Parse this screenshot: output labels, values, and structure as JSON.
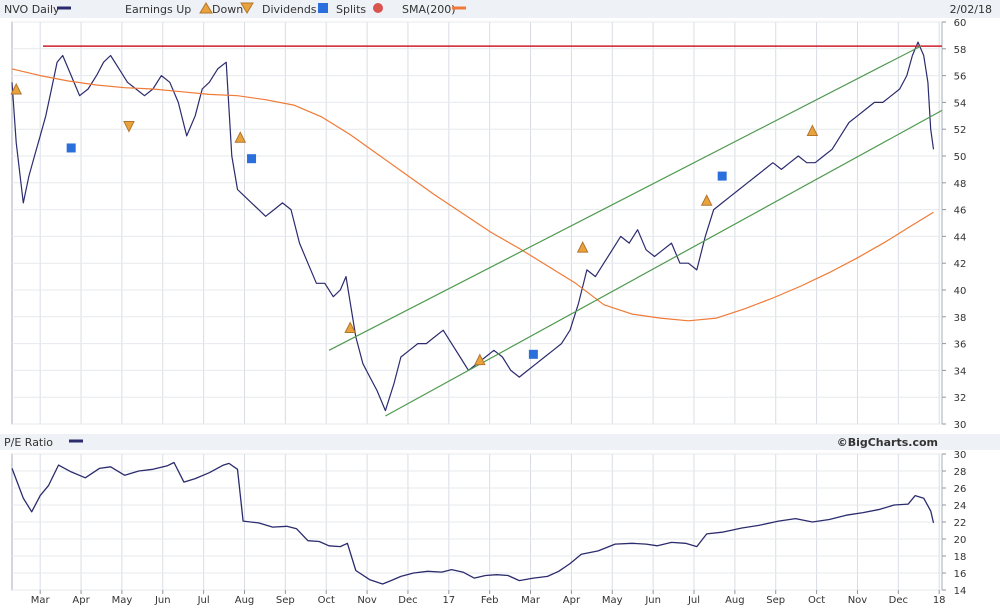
{
  "chart_data": [
    {
      "type": "line",
      "title": "NVO Daily",
      "date_label": "2/02/18",
      "legend": [
        {
          "label": "NVO Daily",
          "kind": "line",
          "color": "#2b2b6e"
        },
        {
          "label": "Earnings Up",
          "kind": "triangle-up",
          "color": "#e8a33c"
        },
        {
          "label": "Down",
          "kind": "triangle-down",
          "color": "#e8a33c"
        },
        {
          "label": "Dividends",
          "kind": "square-D",
          "color": "#2a6fdb"
        },
        {
          "label": "Splits",
          "kind": "circle-S",
          "color": "#d9534f"
        },
        {
          "label": "SMA(200)",
          "kind": "line",
          "color": "#f07a36"
        }
      ],
      "ylim": [
        30,
        60
      ],
      "y_ticks": [
        30,
        32,
        34,
        36,
        38,
        40,
        42,
        44,
        46,
        48,
        50,
        52,
        54,
        56,
        58,
        60
      ],
      "x_ticks": [
        "Mar",
        "Apr",
        "May",
        "Jun",
        "Jul",
        "Aug",
        "Sep",
        "Oct",
        "Nov",
        "Dec",
        "17",
        "Feb",
        "Mar",
        "Apr",
        "May",
        "Jun",
        "Jul",
        "Aug",
        "Sep",
        "Oct",
        "Nov",
        "Dec",
        "18"
      ],
      "series": [
        {
          "name": "NVO Daily",
          "color": "#2b2b6e",
          "points": [
            [
              0,
              55.5
            ],
            [
              0.3,
              51
            ],
            [
              0.8,
              46.5
            ],
            [
              1.2,
              48.5
            ],
            [
              1.6,
              50
            ],
            [
              2.0,
              51.5
            ],
            [
              2.4,
              53
            ],
            [
              2.8,
              55
            ],
            [
              3.2,
              57
            ],
            [
              3.6,
              57.5
            ],
            [
              4.2,
              56
            ],
            [
              4.8,
              54.5
            ],
            [
              5.4,
              55
            ],
            [
              6.0,
              56
            ],
            [
              6.5,
              57
            ],
            [
              7.0,
              57.5
            ],
            [
              7.6,
              56.5
            ],
            [
              8.2,
              55.5
            ],
            [
              8.8,
              55
            ],
            [
              9.4,
              54.5
            ],
            [
              10.0,
              55
            ],
            [
              10.6,
              56
            ],
            [
              11.2,
              55.5
            ],
            [
              11.8,
              54
            ],
            [
              12.4,
              51.5
            ],
            [
              13.0,
              53
            ],
            [
              13.5,
              55
            ],
            [
              14.0,
              55.5
            ],
            [
              14.6,
              56.5
            ],
            [
              15.2,
              57
            ],
            [
              15.6,
              50
            ],
            [
              16.0,
              47.5
            ],
            [
              16.5,
              47
            ],
            [
              17.0,
              46.5
            ],
            [
              17.5,
              46
            ],
            [
              18.0,
              45.5
            ],
            [
              18.6,
              46
            ],
            [
              19.2,
              46.5
            ],
            [
              19.8,
              46
            ],
            [
              20.4,
              43.5
            ],
            [
              21.0,
              42
            ],
            [
              21.6,
              40.5
            ],
            [
              22.2,
              40.5
            ],
            [
              22.8,
              39.5
            ],
            [
              23.3,
              40
            ],
            [
              23.7,
              41
            ],
            [
              24.4,
              36.5
            ],
            [
              24.9,
              34.5
            ],
            [
              25.4,
              33.5
            ],
            [
              25.9,
              32.5
            ],
            [
              26.5,
              31
            ],
            [
              27.1,
              33
            ],
            [
              27.6,
              35
            ],
            [
              28.2,
              35.5
            ],
            [
              28.8,
              36
            ],
            [
              29.4,
              36
            ],
            [
              30.0,
              36.5
            ],
            [
              30.6,
              37
            ],
            [
              31.2,
              36
            ],
            [
              31.8,
              35
            ],
            [
              32.4,
              34
            ],
            [
              33.0,
              34.5
            ],
            [
              33.6,
              35
            ],
            [
              34.2,
              35.5
            ],
            [
              34.8,
              35
            ],
            [
              35.4,
              34
            ],
            [
              36.0,
              33.5
            ],
            [
              36.6,
              34
            ],
            [
              37.2,
              34.5
            ],
            [
              37.8,
              35
            ],
            [
              38.4,
              35.5
            ],
            [
              39.0,
              36
            ],
            [
              39.6,
              37
            ],
            [
              40.2,
              39
            ],
            [
              40.8,
              41.5
            ],
            [
              41.4,
              41
            ],
            [
              42.0,
              42
            ],
            [
              42.6,
              43
            ],
            [
              43.2,
              44
            ],
            [
              43.8,
              43.5
            ],
            [
              44.4,
              44.5
            ],
            [
              45.0,
              43
            ],
            [
              45.6,
              42.5
            ],
            [
              46.2,
              43
            ],
            [
              46.8,
              43.5
            ],
            [
              47.4,
              42
            ],
            [
              48.0,
              42
            ],
            [
              48.6,
              41.5
            ],
            [
              49.2,
              44
            ],
            [
              49.8,
              46
            ],
            [
              50.4,
              46.5
            ],
            [
              51.0,
              47
            ],
            [
              51.6,
              47.5
            ],
            [
              52.2,
              48
            ],
            [
              52.8,
              48.5
            ],
            [
              53.4,
              49
            ],
            [
              54.0,
              49.5
            ],
            [
              54.6,
              49
            ],
            [
              55.2,
              49.5
            ],
            [
              55.8,
              50
            ],
            [
              56.4,
              49.5
            ],
            [
              57.0,
              49.5
            ],
            [
              57.6,
              50
            ],
            [
              58.2,
              50.5
            ],
            [
              58.8,
              51.5
            ],
            [
              59.4,
              52.5
            ],
            [
              60.0,
              53
            ],
            [
              60.6,
              53.5
            ],
            [
              61.2,
              54
            ],
            [
              61.8,
              54
            ],
            [
              62.4,
              54.5
            ],
            [
              63.0,
              55
            ],
            [
              63.5,
              56
            ],
            [
              63.9,
              57.5
            ],
            [
              64.3,
              58.5
            ],
            [
              64.7,
              57.5
            ],
            [
              65.0,
              55.5
            ],
            [
              65.2,
              52
            ],
            [
              65.4,
              50.5
            ]
          ]
        },
        {
          "name": "SMA(200)",
          "color": "#f07a36",
          "points": [
            [
              0,
              56.5
            ],
            [
              2,
              56
            ],
            [
              4,
              55.6
            ],
            [
              6,
              55.3
            ],
            [
              8,
              55.1
            ],
            [
              10,
              55
            ],
            [
              12,
              54.8
            ],
            [
              14,
              54.6
            ],
            [
              16,
              54.5
            ],
            [
              18,
              54.2
            ],
            [
              20,
              53.8
            ],
            [
              22,
              52.9
            ],
            [
              24,
              51.6
            ],
            [
              26,
              50.1
            ],
            [
              28,
              48.6
            ],
            [
              30,
              47.1
            ],
            [
              32,
              45.7
            ],
            [
              34,
              44.3
            ],
            [
              36,
              43.1
            ],
            [
              38,
              41.8
            ],
            [
              40,
              40.5
            ],
            [
              42,
              38.9
            ],
            [
              44,
              38.2
            ],
            [
              46,
              37.9
            ],
            [
              48,
              37.7
            ],
            [
              50,
              37.9
            ],
            [
              52,
              38.6
            ],
            [
              54,
              39.4
            ],
            [
              56,
              40.3
            ],
            [
              58,
              41.3
            ],
            [
              60,
              42.4
            ],
            [
              62,
              43.6
            ],
            [
              64,
              44.9
            ],
            [
              65.4,
              45.8
            ]
          ]
        },
        {
          "name": "Resistance",
          "color": "#cc1f2a",
          "points": [
            [
              2.2,
              58.2
            ],
            [
              66,
              58.2
            ]
          ]
        },
        {
          "name": "Channel Upper",
          "color": "#4f9a4f",
          "points": [
            [
              22.5,
              35.5
            ],
            [
              64.5,
              58.2
            ]
          ]
        },
        {
          "name": "Channel Lower",
          "color": "#4f9a4f",
          "points": [
            [
              26.5,
              30.6
            ],
            [
              66,
              53.4
            ]
          ]
        }
      ],
      "markers": [
        {
          "kind": "earnings-up",
          "x": 0.3,
          "y": 55
        },
        {
          "kind": "earnings-down",
          "x": 8.3,
          "y": 52.2
        },
        {
          "kind": "earnings-up",
          "x": 16.2,
          "y": 51.4
        },
        {
          "kind": "earnings-up",
          "x": 24.0,
          "y": 37.2
        },
        {
          "kind": "earnings-up",
          "x": 33.2,
          "y": 34.8
        },
        {
          "kind": "earnings-up",
          "x": 40.5,
          "y": 43.2
        },
        {
          "kind": "earnings-up",
          "x": 49.3,
          "y": 46.7
        },
        {
          "kind": "earnings-up",
          "x": 56.8,
          "y": 51.9
        },
        {
          "kind": "dividend",
          "x": 4.2,
          "y": 50.6
        },
        {
          "kind": "dividend",
          "x": 17.0,
          "y": 49.8
        },
        {
          "kind": "dividend",
          "x": 37.0,
          "y": 35.2
        },
        {
          "kind": "dividend",
          "x": 50.4,
          "y": 48.5
        }
      ]
    },
    {
      "type": "line",
      "title": "P/E Ratio",
      "credit": "©BigCharts.com",
      "ylim": [
        14,
        30
      ],
      "y_ticks": [
        14,
        16,
        18,
        20,
        22,
        24,
        26,
        28,
        30
      ],
      "series": [
        {
          "name": "P/E Ratio",
          "color": "#2b2b6e",
          "points": [
            [
              0,
              28.3
            ],
            [
              0.8,
              24.8
            ],
            [
              1.4,
              23.2
            ],
            [
              2.0,
              25.1
            ],
            [
              2.6,
              26.3
            ],
            [
              3.3,
              28.7
            ],
            [
              4.2,
              27.9
            ],
            [
              5.2,
              27.2
            ],
            [
              6.2,
              28.3
            ],
            [
              7.0,
              28.5
            ],
            [
              8.0,
              27.5
            ],
            [
              9.0,
              28
            ],
            [
              10.0,
              28.2
            ],
            [
              11.0,
              28.6
            ],
            [
              11.5,
              29
            ],
            [
              12.2,
              26.7
            ],
            [
              13.0,
              27.1
            ],
            [
              14.0,
              27.8
            ],
            [
              15.0,
              28.7
            ],
            [
              15.4,
              28.9
            ],
            [
              16.0,
              28.2
            ],
            [
              16.4,
              22.1
            ],
            [
              17.5,
              21.9
            ],
            [
              18.5,
              21.4
            ],
            [
              19.5,
              21.5
            ],
            [
              20.2,
              21.2
            ],
            [
              21.0,
              19.8
            ],
            [
              21.8,
              19.7
            ],
            [
              22.5,
              19.2
            ],
            [
              23.3,
              19.1
            ],
            [
              23.8,
              19.5
            ],
            [
              24.4,
              16.3
            ],
            [
              25.4,
              15.2
            ],
            [
              26.3,
              14.7
            ],
            [
              26.9,
              15.1
            ],
            [
              27.6,
              15.6
            ],
            [
              28.5,
              16
            ],
            [
              29.5,
              16.2
            ],
            [
              30.5,
              16.1
            ],
            [
              31.2,
              16.4
            ],
            [
              32.0,
              16.1
            ],
            [
              32.8,
              15.4
            ],
            [
              33.6,
              15.7
            ],
            [
              34.4,
              15.8
            ],
            [
              35.2,
              15.7
            ],
            [
              36.0,
              15.1
            ],
            [
              37.0,
              15.4
            ],
            [
              38.0,
              15.6
            ],
            [
              38.8,
              16.2
            ],
            [
              39.6,
              17.1
            ],
            [
              40.4,
              18.2
            ],
            [
              41.6,
              18.6
            ],
            [
              42.8,
              19.4
            ],
            [
              44.0,
              19.5
            ],
            [
              45.0,
              19.4
            ],
            [
              45.8,
              19.2
            ],
            [
              46.8,
              19.6
            ],
            [
              47.8,
              19.5
            ],
            [
              48.6,
              19.1
            ],
            [
              49.3,
              20.6
            ],
            [
              50.4,
              20.8
            ],
            [
              51.8,
              21.3
            ],
            [
              53.0,
              21.6
            ],
            [
              54.4,
              22.1
            ],
            [
              55.6,
              22.4
            ],
            [
              56.8,
              22
            ],
            [
              58.0,
              22.3
            ],
            [
              59.2,
              22.8
            ],
            [
              60.4,
              23.1
            ],
            [
              61.6,
              23.5
            ],
            [
              62.6,
              24
            ],
            [
              63.6,
              24.1
            ],
            [
              64.1,
              25.1
            ],
            [
              64.7,
              24.8
            ],
            [
              65.2,
              23.3
            ],
            [
              65.4,
              21.9
            ]
          ]
        }
      ]
    }
  ]
}
